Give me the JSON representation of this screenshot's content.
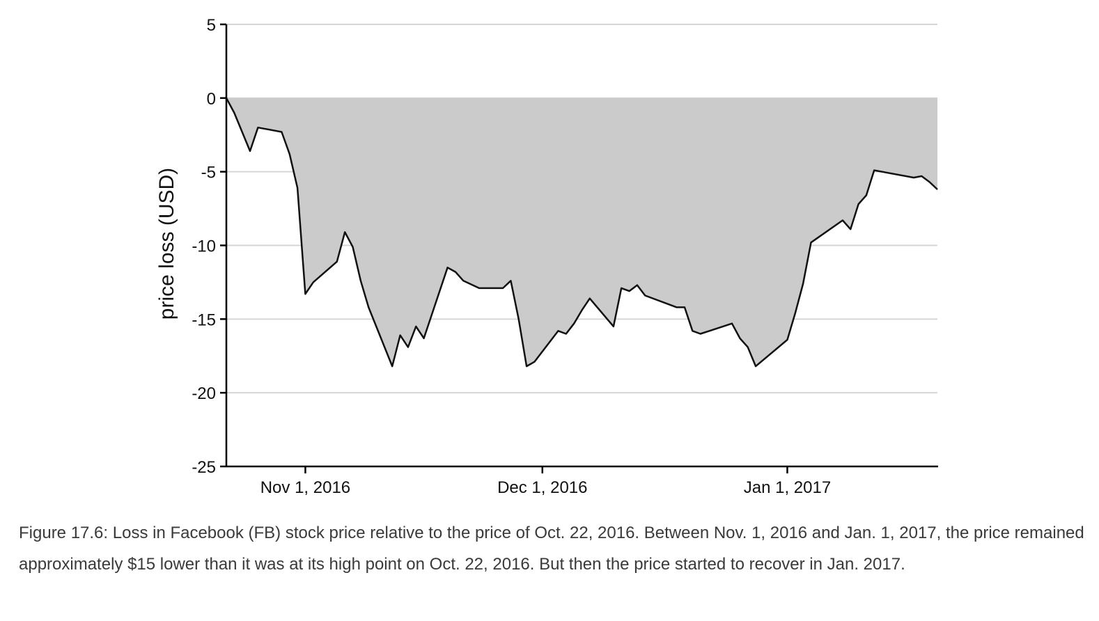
{
  "chart_data": {
    "type": "area",
    "xlabel": "",
    "ylabel": "price loss (USD)",
    "x_start": "2016-10-22",
    "x_end": "2017-01-20",
    "ylim": [
      -25,
      5
    ],
    "y_ticks": [
      5,
      0,
      -5,
      -10,
      -15,
      -20,
      -25
    ],
    "y_tick_labels": [
      "5",
      "0",
      "-5",
      "-10",
      "-15",
      "-20",
      "-25"
    ],
    "x_ticks": [
      {
        "date": "2016-11-01",
        "label": "Nov 1, 2016"
      },
      {
        "date": "2016-12-01",
        "label": "Dec 1, 2016"
      },
      {
        "date": "2017-01-01",
        "label": "Jan 1, 2017"
      }
    ],
    "grid": true,
    "fill_color": "#cbcbcb",
    "line_color": "#111111",
    "series": [
      {
        "points": [
          [
            "2016-10-22",
            0.0
          ],
          [
            "2016-10-23",
            -1.0
          ],
          [
            "2016-10-25",
            -3.6
          ],
          [
            "2016-10-26",
            -2.0
          ],
          [
            "2016-10-29",
            -2.3
          ],
          [
            "2016-10-30",
            -3.8
          ],
          [
            "2016-10-31",
            -6.1
          ],
          [
            "2016-11-01",
            -13.3
          ],
          [
            "2016-11-02",
            -12.5
          ],
          [
            "2016-11-05",
            -11.1
          ],
          [
            "2016-11-06",
            -9.1
          ],
          [
            "2016-11-07",
            -10.1
          ],
          [
            "2016-11-08",
            -12.4
          ],
          [
            "2016-11-09",
            -14.2
          ],
          [
            "2016-11-12",
            -18.2
          ],
          [
            "2016-11-13",
            -16.1
          ],
          [
            "2016-11-14",
            -16.9
          ],
          [
            "2016-11-15",
            -15.5
          ],
          [
            "2016-11-16",
            -16.3
          ],
          [
            "2016-11-19",
            -11.5
          ],
          [
            "2016-11-20",
            -11.8
          ],
          [
            "2016-11-21",
            -12.4
          ],
          [
            "2016-11-23",
            -12.9
          ],
          [
            "2016-11-26",
            -12.9
          ],
          [
            "2016-11-27",
            -12.4
          ],
          [
            "2016-11-28",
            -15.0
          ],
          [
            "2016-11-29",
            -18.2
          ],
          [
            "2016-11-30",
            -17.9
          ],
          [
            "2016-12-03",
            -15.8
          ],
          [
            "2016-12-04",
            -16.0
          ],
          [
            "2016-12-05",
            -15.3
          ],
          [
            "2016-12-06",
            -14.4
          ],
          [
            "2016-12-07",
            -13.6
          ],
          [
            "2016-12-10",
            -15.5
          ],
          [
            "2016-12-11",
            -12.9
          ],
          [
            "2016-12-12",
            -13.1
          ],
          [
            "2016-12-13",
            -12.7
          ],
          [
            "2016-12-14",
            -13.4
          ],
          [
            "2016-12-17",
            -14.0
          ],
          [
            "2016-12-18",
            -14.2
          ],
          [
            "2016-12-19",
            -14.2
          ],
          [
            "2016-12-20",
            -15.8
          ],
          [
            "2016-12-21",
            -16.0
          ],
          [
            "2016-12-25",
            -15.3
          ],
          [
            "2016-12-26",
            -16.3
          ],
          [
            "2016-12-27",
            -16.9
          ],
          [
            "2016-12-28",
            -18.2
          ],
          [
            "2017-01-01",
            -16.4
          ],
          [
            "2017-01-02",
            -14.6
          ],
          [
            "2017-01-03",
            -12.6
          ],
          [
            "2017-01-04",
            -9.8
          ],
          [
            "2017-01-08",
            -8.3
          ],
          [
            "2017-01-09",
            -8.9
          ],
          [
            "2017-01-10",
            -7.2
          ],
          [
            "2017-01-11",
            -6.6
          ],
          [
            "2017-01-12",
            -4.9
          ],
          [
            "2017-01-17",
            -5.4
          ],
          [
            "2017-01-18",
            -5.3
          ],
          [
            "2017-01-19",
            -5.7
          ],
          [
            "2017-01-20",
            -6.2
          ]
        ]
      }
    ]
  },
  "caption": "Figure 17.6: Loss in Facebook (FB) stock price relative to the price of Oct. 22, 2016. Between Nov. 1, 2016 and Jan. 1, 2017, the price remained approximately $15 lower than it was at its high point on Oct. 22, 2016. But then the price started to recover in Jan. 2017."
}
